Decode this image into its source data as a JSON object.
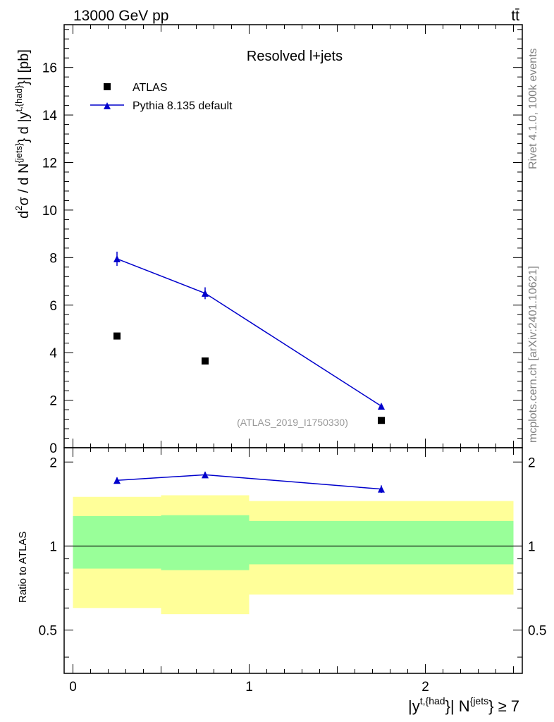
{
  "header": {
    "energy_label": "13000 GeV pp",
    "process_label": "tt̄"
  },
  "side_labels": {
    "rivet": "Rivet 4.1.0,  100k events",
    "site": "mcplots.cern.ch [arXiv:2401.10621]"
  },
  "colors": {
    "pythia": "#0000cc",
    "band_inner": "#99ff99",
    "band_outer": "#ffff99",
    "watermark": "#999999",
    "side_text": "#808080"
  },
  "chart_data": [
    {
      "type": "scatter",
      "panel": "main",
      "title": "Resolved l+jets",
      "ylabel": "d²σ / d N^{jets} d |y^{t,{had}}| [pb]",
      "xlim": [
        -0.05,
        2.55
      ],
      "ylim": [
        0,
        17.8
      ],
      "yticks": [
        0,
        2,
        4,
        6,
        8,
        10,
        12,
        14,
        16
      ],
      "ytick_labels": [
        "0",
        "2",
        "4",
        "6",
        "8",
        "10",
        "12",
        "14",
        "16"
      ],
      "watermark": "(ATLAS_2019_I1750330)",
      "series": [
        {
          "name": "ATLAS",
          "marker": "square",
          "x": [
            0.25,
            0.75,
            1.75
          ],
          "y": [
            4.7,
            3.65,
            1.15
          ]
        },
        {
          "name": "Pythia 8.135 default",
          "marker": "triangle",
          "line": true,
          "x": [
            0.25,
            0.75,
            1.75
          ],
          "y": [
            7.95,
            6.5,
            1.75
          ],
          "yerr": [
            0.3,
            0.25,
            0.06
          ]
        }
      ]
    },
    {
      "type": "line",
      "panel": "ratio",
      "ylabel": "Ratio to ATLAS",
      "xlabel": "|y^{t,{had}}| N^{jets} ≥ 7",
      "xlim": [
        -0.05,
        2.55
      ],
      "ylim": [
        0.35,
        2.25
      ],
      "ytick_labels": [
        "0.5",
        "1",
        "2"
      ],
      "ytick_values": [
        0.5,
        1,
        2
      ],
      "xtick_labels": [
        "0",
        "1",
        "2"
      ],
      "xtick_values": [
        0,
        1,
        2
      ],
      "reference": 1,
      "bands": [
        {
          "x0": 0.0,
          "x1": 0.5,
          "inner": [
            0.83,
            1.28
          ],
          "outer": [
            0.6,
            1.5
          ]
        },
        {
          "x0": 0.5,
          "x1": 1.0,
          "inner": [
            0.82,
            1.29
          ],
          "outer": [
            0.57,
            1.52
          ]
        },
        {
          "x0": 1.0,
          "x1": 2.5,
          "inner": [
            0.86,
            1.23
          ],
          "outer": [
            0.67,
            1.45
          ]
        }
      ],
      "series": [
        {
          "name": "Pythia 8.135 default",
          "x": [
            0.25,
            0.75,
            1.75
          ],
          "y": [
            1.72,
            1.8,
            1.6
          ],
          "yerr": [
            0.04,
            0.045,
            0.05
          ]
        }
      ]
    }
  ]
}
